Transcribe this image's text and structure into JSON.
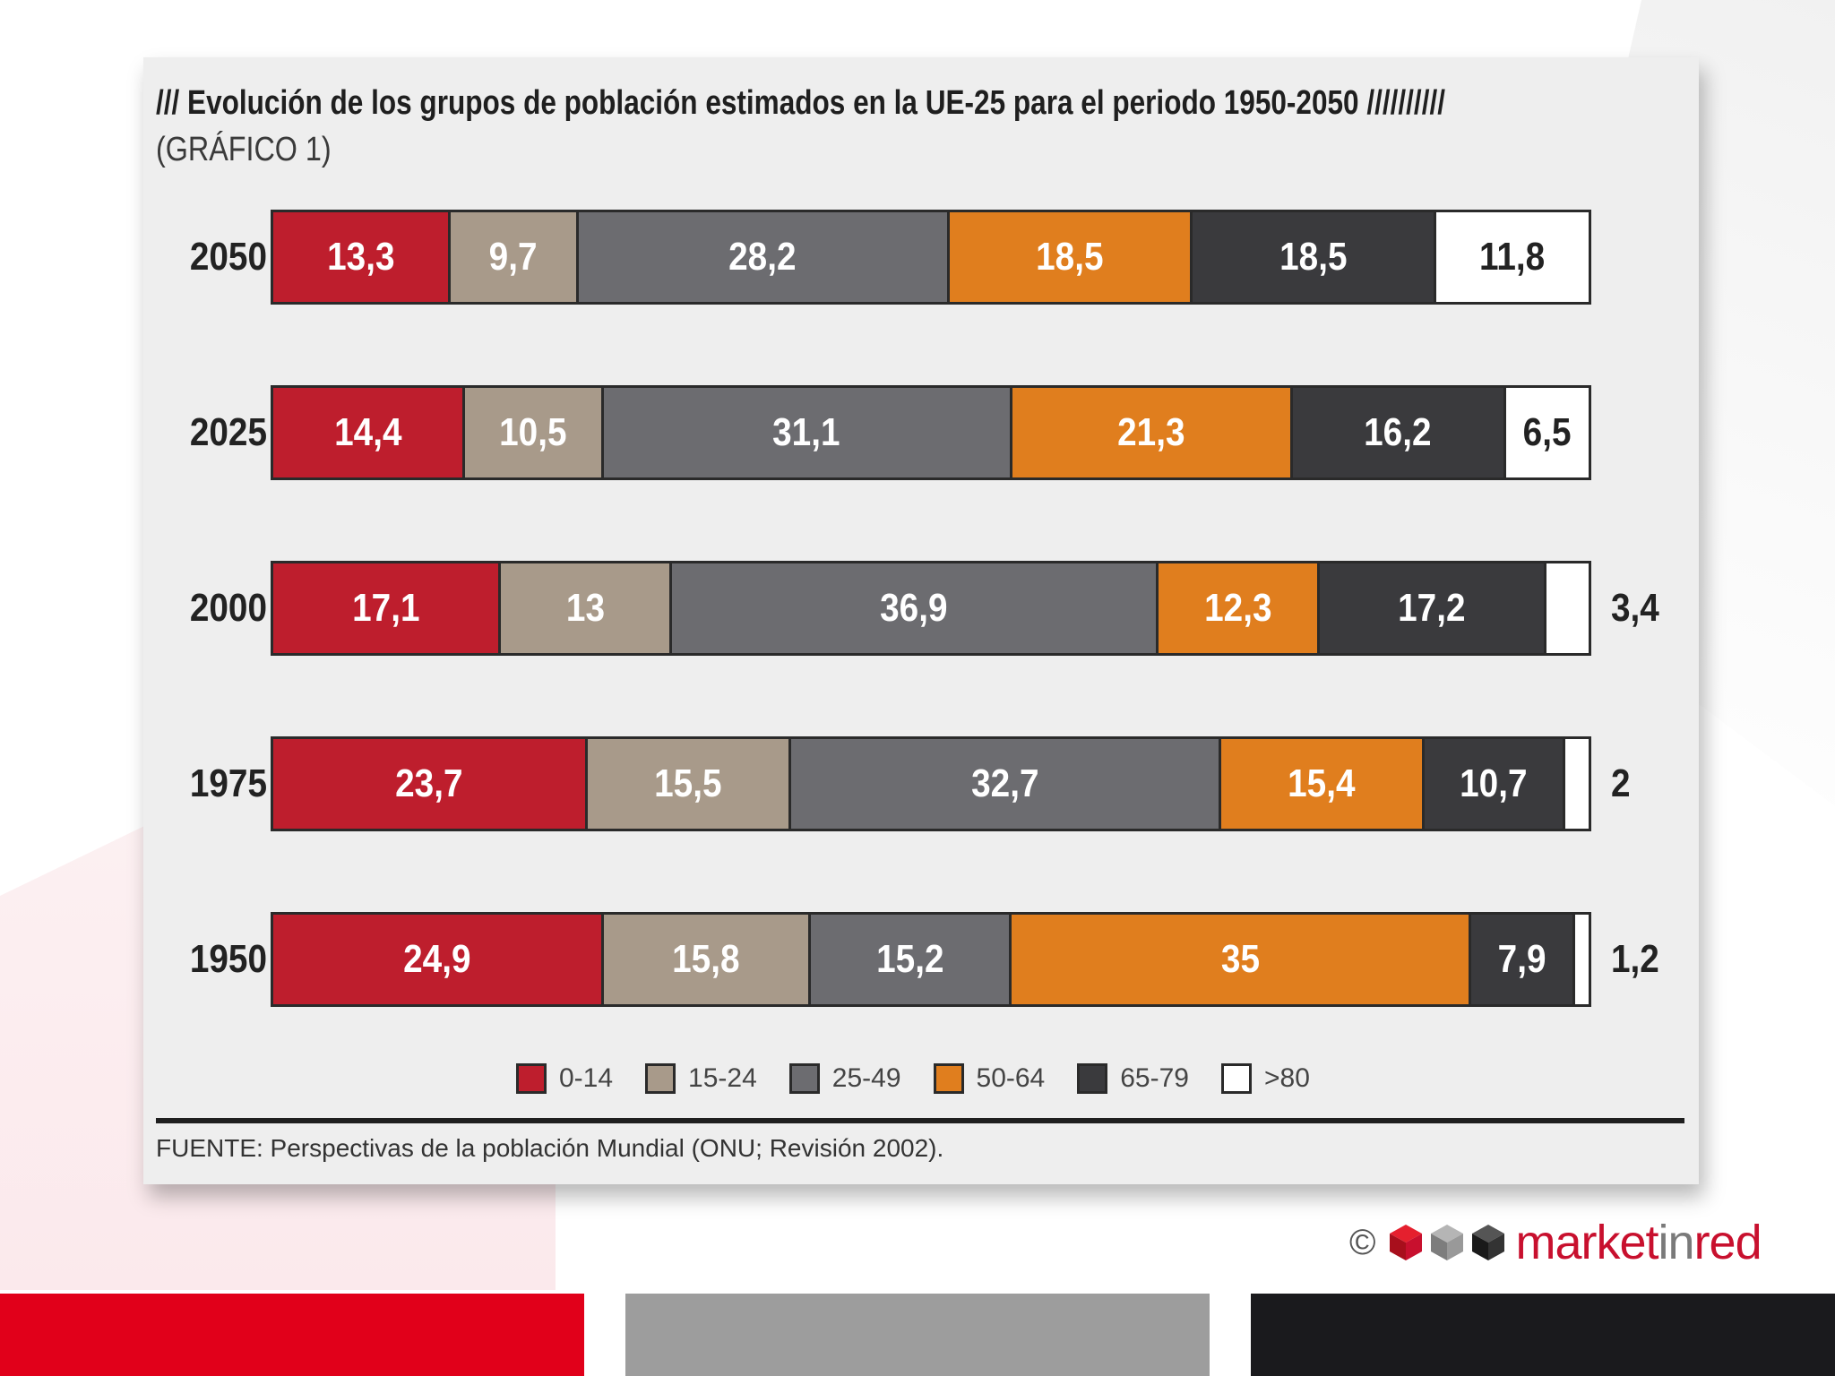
{
  "title": "/// Evolución de los grupos de población estimados en la UE-25 para el periodo 1950-2050 //////////",
  "subtitle": "(GRÁFICO 1)",
  "source": "FUENTE: Perspectivas de la población Mundial (ONU; Revisión 2002).",
  "copyright_symbol": "©",
  "brand": {
    "part1": "market",
    "part2": "in",
    "part3": "red"
  },
  "colors": {
    "0-14": "#be1e2d",
    "15-24": "#a89a8a",
    "25-49": "#6c6c70",
    "50-64": "#e07e1e",
    "65-79": "#3a3a3d",
    ">80": "#ffffff",
    "bottom_red": "#e1001a",
    "bottom_grey": "#9d9d9d",
    "bottom_black": "#1a1a1d"
  },
  "chart_data": {
    "type": "bar",
    "orientation": "horizontal",
    "stacked": true,
    "categories": [
      "2050",
      "2025",
      "2000",
      "1975",
      "1950"
    ],
    "series": [
      {
        "name": "0-14",
        "values": [
          "13,3",
          "14,4",
          "17,1",
          "23,7",
          "24,9"
        ]
      },
      {
        "name": "15-24",
        "values": [
          "9,7",
          "10,5",
          "13",
          "15,5",
          "15,8"
        ]
      },
      {
        "name": "25-49",
        "values": [
          "28,2",
          "31,1",
          "36,9",
          "32,7",
          "15,2"
        ]
      },
      {
        "name": "50-64",
        "values": [
          "18,5",
          "21,3",
          "12,3",
          "15,4",
          "35"
        ]
      },
      {
        "name": "65-79",
        "values": [
          "18,5",
          "16,2",
          "17,2",
          "10,7",
          "7,9"
        ]
      },
      {
        "name": ">80",
        "values": [
          "11,8",
          "6,5",
          "3,4",
          "2",
          "1,2"
        ]
      }
    ],
    "legend": [
      "0-14",
      "15-24",
      "25-49",
      "50-64",
      "65-79",
      ">80"
    ],
    "legend_position": "bottom",
    "xlim": [
      0,
      100
    ],
    "xlabel": "",
    "ylabel": ""
  }
}
